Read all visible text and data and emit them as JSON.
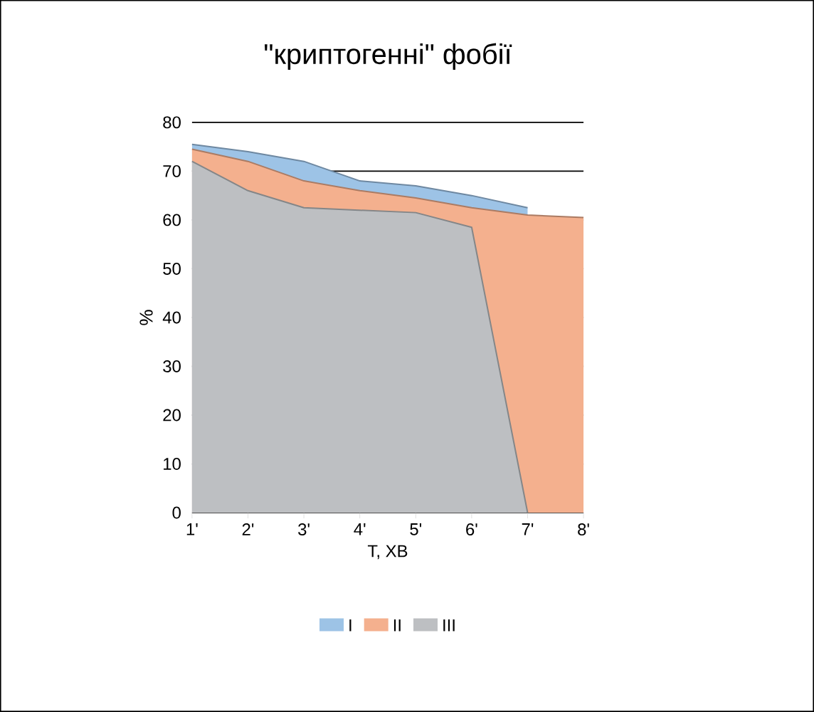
{
  "chart_data": {
    "type": "area",
    "title": "\"криптогенні\" фобії",
    "xlabel": "T, ХВ",
    "ylabel": "%",
    "categories": [
      "1'",
      "2'",
      "3'",
      "4'",
      "5'",
      "6'",
      "7'",
      "8'"
    ],
    "series": [
      {
        "name": "I",
        "color": "#9dc3e6",
        "values": [
          75.5,
          74,
          72,
          68,
          67,
          65,
          62.5,
          null
        ]
      },
      {
        "name": "II",
        "color": "#f4b08e",
        "values": [
          74.5,
          72,
          68,
          66,
          64.5,
          62.5,
          61,
          60.5
        ]
      },
      {
        "name": "III",
        "color": "#bdbfc2",
        "values": [
          72,
          66,
          62.5,
          62,
          61.5,
          58.5,
          0,
          null
        ]
      }
    ],
    "ylim": [
      0,
      80
    ],
    "yticks": [
      0,
      10,
      20,
      30,
      40,
      50,
      60,
      70,
      80
    ],
    "grid": "y",
    "legend": "bottom"
  }
}
